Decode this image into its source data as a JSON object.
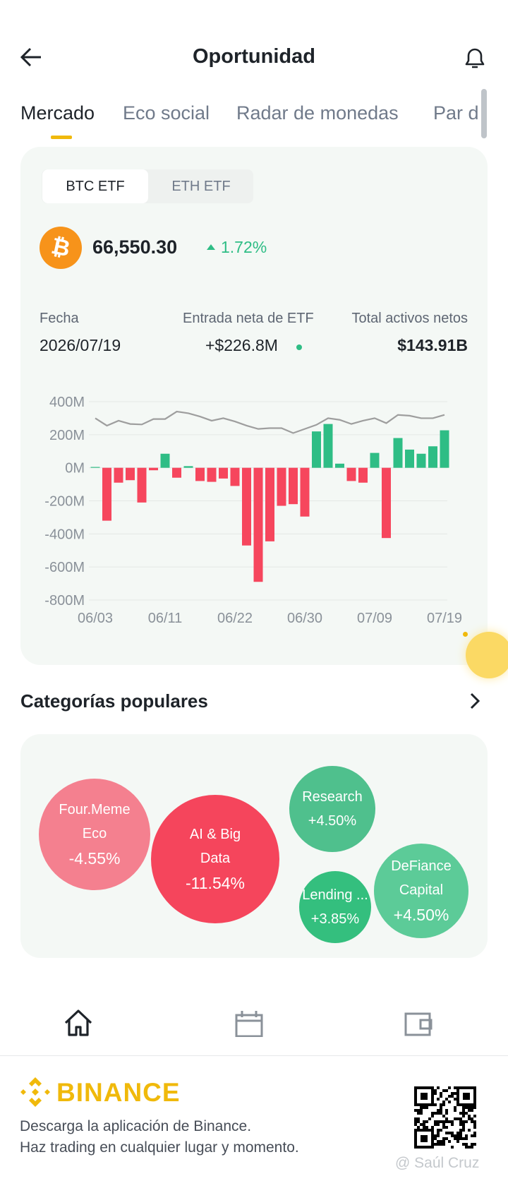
{
  "header": {
    "title": "Oportunidad"
  },
  "tabs": [
    "Mercado",
    "Eco social",
    "Radar de monedas",
    "Par d"
  ],
  "etf_tabs": [
    "BTC ETF",
    "ETH ETF"
  ],
  "price": {
    "value": "66,550.30",
    "change": "1.72%"
  },
  "stats": [
    {
      "label": "Fecha",
      "value": "2026/07/19"
    },
    {
      "label": "Entrada neta de ETF",
      "value": "+$226.8M"
    },
    {
      "label": "Total activos netos",
      "value": "$143.91B"
    }
  ],
  "chart_data": {
    "type": "bar",
    "categories": [
      "06/03",
      null,
      null,
      null,
      null,
      null,
      "06/11",
      null,
      null,
      null,
      null,
      null,
      "06/22",
      null,
      null,
      null,
      null,
      null,
      "06/30",
      null,
      null,
      null,
      null,
      null,
      "07/09",
      null,
      null,
      null,
      null,
      null,
      "07/19"
    ],
    "series": [
      {
        "type": "bar",
        "positive_color": "#2ebd85",
        "negative_color": "#f6465d",
        "values": [
          5,
          -320,
          -90,
          -75,
          -210,
          -15,
          85,
          -60,
          10,
          -80,
          -85,
          -65,
          -110,
          -470,
          -690,
          -445,
          -230,
          -220,
          -295,
          220,
          265,
          25,
          -80,
          -90,
          90,
          -425,
          180,
          110,
          85,
          130,
          226.8
        ]
      },
      {
        "type": "line",
        "color": "#9e9e9e",
        "values": [
          300,
          255,
          285,
          265,
          262,
          295,
          295,
          340,
          330,
          310,
          285,
          300,
          280,
          255,
          235,
          240,
          240,
          210,
          235,
          260,
          300,
          290,
          265,
          285,
          300,
          270,
          320,
          315,
          300,
          300,
          320
        ]
      }
    ],
    "ylim": [
      -800,
      400
    ],
    "yticks": [
      {
        "value": 400,
        "label": "400M"
      },
      {
        "value": 200,
        "label": "200M"
      },
      {
        "value": 0,
        "label": "0M"
      },
      {
        "value": -200,
        "label": "-200M"
      },
      {
        "value": -400,
        "label": "-400M"
      },
      {
        "value": -600,
        "label": "-600M"
      },
      {
        "value": -800,
        "label": "-800M"
      }
    ],
    "grid": true
  },
  "categories_section": {
    "title": "Categorías populares",
    "bubbles": [
      {
        "label": "Four.Meme Eco",
        "change": "-4.55%",
        "color": "#f4808f"
      },
      {
        "label": "AI & Big Data",
        "change": "-11.54%",
        "color": "#f5455c"
      },
      {
        "label": "Research",
        "change": "+4.50%",
        "color": "#4fc08d"
      },
      {
        "label": "Lending ...",
        "change": "+3.85%",
        "color": "#34bf7e"
      },
      {
        "label": "DeFiance Capital",
        "change": "+4.50%",
        "color": "#5ccb98"
      }
    ]
  },
  "footer": {
    "brand": "BINANCE",
    "lines": [
      "Descarga la aplicación de Binance.",
      "Haz trading en cualquier lugar y momento."
    ],
    "watermark": "@ Saúl Cruz"
  }
}
